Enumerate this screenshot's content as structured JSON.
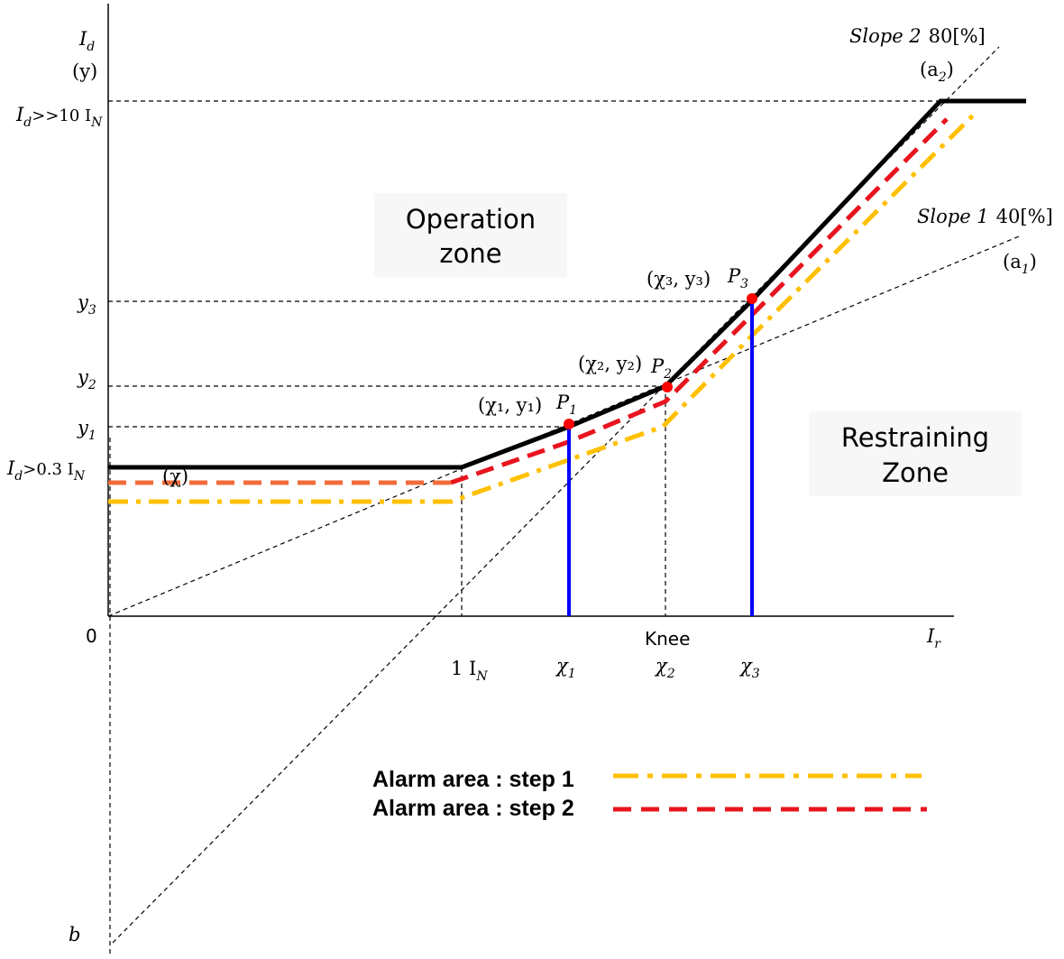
{
  "axes": {
    "y_label": "I",
    "y_label_sub": "d",
    "y_var": "(y)",
    "x_label": "I",
    "x_label_sub": "r",
    "origin": "0",
    "b_label": "b"
  },
  "y_ticks": {
    "id_max": {
      "main": "I",
      "sub": "d",
      "rest": ">>10 I",
      "sub2": "N"
    },
    "y3": {
      "main": "y",
      "sub": "3"
    },
    "y2": {
      "main": "y",
      "sub": "2"
    },
    "y1": {
      "main": "y",
      "sub": "1"
    },
    "id_min": {
      "main": "I",
      "sub": "d",
      "rest": ">0.3 I",
      "sub2": "N"
    }
  },
  "x_ticks": {
    "in": {
      "main": "1 I",
      "sub": "N"
    },
    "knee": "Knee",
    "x1": {
      "main": "χ",
      "sub": "1"
    },
    "x2": {
      "main": "χ",
      "sub": "2"
    },
    "x3": {
      "main": "χ",
      "sub": "3"
    }
  },
  "slopes": {
    "slope2": {
      "label": "Slope 2",
      "value": "80[%]",
      "coef": "(a",
      "coef_sub": "2",
      "close": ")"
    },
    "slope1": {
      "label": "Slope 1",
      "value": "40[%]",
      "coef": "(a",
      "coef_sub": "1",
      "close": ")"
    }
  },
  "zones": {
    "operation_line1": "Operation",
    "operation_line2": "zone",
    "restraining_line1": "Restraining",
    "restraining_line2": "Zone"
  },
  "points": {
    "p1": {
      "coord": "(χ₁, y₁)",
      "name": "P",
      "sub": "1"
    },
    "p2": {
      "coord": "(χ₂, y₂)",
      "name": "P",
      "sub": "2"
    },
    "p3": {
      "coord": "(χ₃, y₃)",
      "name": "P",
      "sub": "3"
    },
    "chi_label": "(χ)"
  },
  "legend": {
    "step1": "Alarm area : step 1",
    "step2": "Alarm area : step 2"
  },
  "colors": {
    "characteristic": "#000000",
    "step1": "#FFC000",
    "step2": "#E8141E",
    "step_offset": "#F26B3A",
    "verticals": "#0000FF",
    "points": "#FF0000",
    "zone_bg": "#F7F7F7"
  }
}
